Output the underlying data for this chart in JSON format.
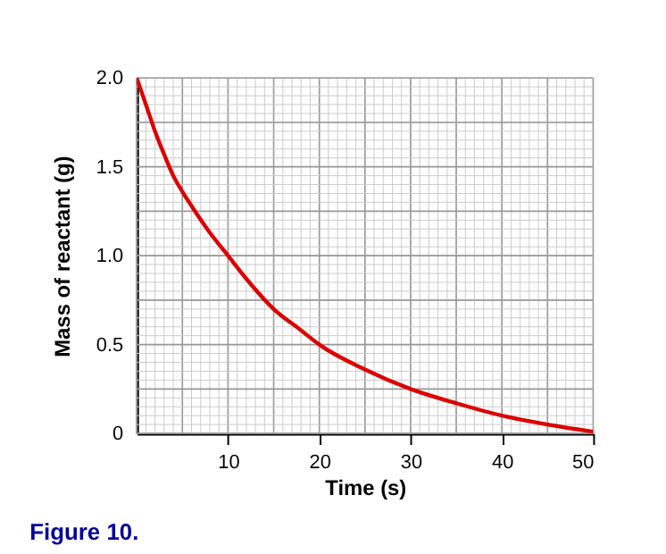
{
  "chart_data": {
    "type": "line",
    "xlabel": "Time (s)",
    "ylabel": "Mass of reactant (g)",
    "x": [
      0,
      1,
      2,
      3,
      4,
      5,
      6,
      8,
      10,
      12,
      15,
      18,
      20,
      25,
      30,
      35,
      40,
      45,
      50
    ],
    "series": [
      {
        "color": "#dd0000",
        "values": [
          2.0,
          1.85,
          1.7,
          1.57,
          1.45,
          1.36,
          1.28,
          1.13,
          1.0,
          0.87,
          0.7,
          0.58,
          0.5,
          0.36,
          0.25,
          0.17,
          0.1,
          0.05,
          0.01
        ]
      }
    ],
    "xlim": [
      0,
      50
    ],
    "ylim": [
      0,
      2
    ],
    "xticks": [
      10,
      20,
      30,
      40,
      50
    ],
    "yticks": [
      0,
      0.5,
      {
        "value": 1,
        "label": "1.0"
      },
      1.5,
      {
        "value": 2,
        "label": "2.0"
      }
    ],
    "grid": true,
    "marker": "none",
    "line_style": "solid",
    "annotations": [
      "Figure 10."
    ]
  }
}
